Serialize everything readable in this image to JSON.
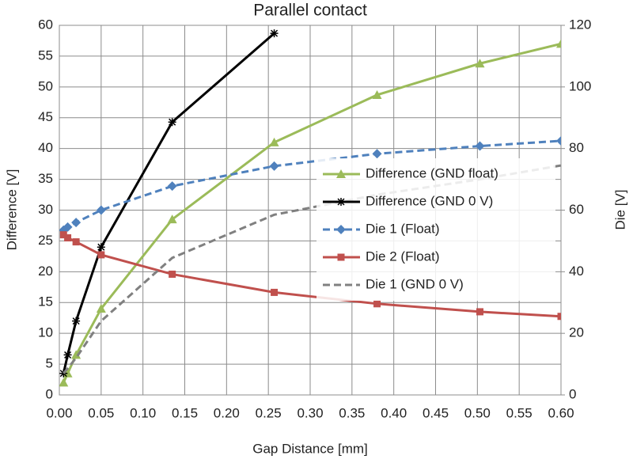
{
  "chart_data": {
    "type": "line",
    "title": "Parallel contact",
    "x_label": "Gap Distance [mm]",
    "y_label": "Difference [V]",
    "y2_label": "Die [V]",
    "xlim": [
      0,
      0.6
    ],
    "xticks": [
      {
        "value": 0,
        "label": "0.00"
      },
      {
        "value": 0.05,
        "label": "0.05"
      },
      {
        "value": 0.1,
        "label": "0.10"
      },
      {
        "value": 0.15,
        "label": "0.15"
      },
      {
        "value": 0.2,
        "label": "0.20"
      },
      {
        "value": 0.25,
        "label": "0.25"
      },
      {
        "value": 0.3,
        "label": "0.30"
      },
      {
        "value": 0.35,
        "label": "0.35"
      },
      {
        "value": 0.4,
        "label": "0.40"
      },
      {
        "value": 0.45,
        "label": "0.45"
      },
      {
        "value": 0.5,
        "label": "0.50"
      },
      {
        "value": 0.55,
        "label": "0.55"
      },
      {
        "value": 0.6,
        "label": "0.60"
      }
    ],
    "ylim": [
      0,
      60
    ],
    "yticks": [
      0,
      5,
      10,
      15,
      20,
      25,
      30,
      35,
      40,
      45,
      50,
      55,
      60
    ],
    "y2lim": [
      0,
      120
    ],
    "y2ticks": [
      0,
      20,
      40,
      60,
      80,
      100,
      120
    ],
    "grid": true,
    "legend": "right",
    "series": [
      {
        "name": "Difference (GND float)",
        "color": "#9bbb59",
        "marker": "triangle",
        "dashed": false,
        "axis": "y",
        "x": [
          0.005,
          0.01,
          0.02,
          0.05,
          0.135,
          0.257,
          0.38,
          0.503,
          0.6
        ],
        "values": [
          2,
          3.5,
          6.5,
          14,
          28.5,
          41,
          48.7,
          53.8,
          57
        ]
      },
      {
        "name": "Difference (GND 0 V)",
        "color": "#000000",
        "marker": "star",
        "dashed": false,
        "axis": "y",
        "x": [
          0.005,
          0.01,
          0.02,
          0.05,
          0.135,
          0.257
        ],
        "values": [
          3.5,
          6.5,
          12,
          24,
          44.3,
          58.7
        ]
      },
      {
        "name": "Die 1 (Float)",
        "color": "#4f81bd",
        "marker": "diamond",
        "dashed": true,
        "axis": "y2",
        "x": [
          0.005,
          0.01,
          0.02,
          0.05,
          0.135,
          0.257,
          0.38,
          0.503,
          0.6
        ],
        "values": [
          53.5,
          54.5,
          56,
          60,
          67.8,
          74.3,
          78.3,
          80.8,
          82.5
        ]
      },
      {
        "name": "Die 2 (Float)",
        "color": "#c0504d",
        "marker": "square",
        "dashed": false,
        "axis": "y2",
        "x": [
          0.005,
          0.01,
          0.02,
          0.05,
          0.135,
          0.257,
          0.38,
          0.503,
          0.6
        ],
        "values": [
          52,
          51,
          49.7,
          45.5,
          39.2,
          33.3,
          29.6,
          27,
          25.5
        ]
      },
      {
        "name": "Die 1 (GND 0 V)",
        "color": "#808080",
        "marker": null,
        "dashed": true,
        "axis": "y2",
        "x": [
          0.005,
          0.02,
          0.05,
          0.135,
          0.257,
          0.38,
          0.503,
          0.6
        ],
        "values": [
          7,
          12,
          24,
          44.5,
          58.5,
          65,
          70,
          74.5
        ]
      }
    ]
  }
}
